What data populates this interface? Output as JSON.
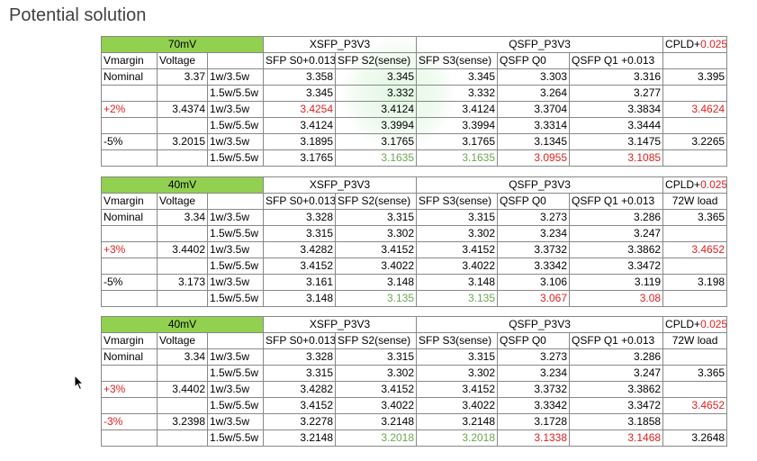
{
  "title": "Potential solution",
  "tables": [
    {
      "mv": "70mV",
      "xsfp": "XSFP_P3V3",
      "qsfp": "QSFP_P3V3",
      "cpld_prefix": "CPLD+",
      "cpld_value": "0.025",
      "sub": [
        "Vmargin",
        "Voltage",
        "",
        "SFP S0+0.013",
        "SFP S2(sense)",
        "SFP S3(sense)",
        "QSFP Q0",
        "QSFP Q1 +0.013",
        ""
      ],
      "rows": [
        [
          "Nominal",
          "3.37",
          "1w/3.5w",
          "3.358",
          "3.345",
          "3.345",
          "3.303",
          "3.316",
          "3.395"
        ],
        [
          "",
          "",
          "1.5w/5.5w",
          "3.345",
          "3.332",
          "3.332",
          "3.264",
          "3.277",
          ""
        ],
        [
          "+2%",
          "3.4374",
          "1w/3.5w",
          "3.4254",
          "3.4124",
          "3.4124",
          "3.3704",
          "3.3834",
          "3.4624"
        ],
        [
          "",
          "",
          "1.5w/5.5w",
          "3.4124",
          "3.3994",
          "3.3994",
          "3.3314",
          "3.3444",
          ""
        ],
        [
          "-5%",
          "3.2015",
          "1w/3.5w",
          "3.1895",
          "3.1765",
          "3.1765",
          "3.1345",
          "3.1475",
          "3.2265"
        ],
        [
          "",
          "",
          "1.5w/5.5w",
          "3.1765",
          "3.1635",
          "3.1635",
          "3.0955",
          "3.1085",
          ""
        ]
      ]
    },
    {
      "mv": "40mV",
      "xsfp": "XSFP_P3V3",
      "qsfp": "QSFP_P3V3",
      "cpld_prefix": "CPLD+",
      "cpld_value": "0.025",
      "sub": [
        "Vmargin",
        "Voltage",
        "",
        "SFP S0+0.013",
        "SFP S2(sense)",
        "SFP S3(sense)",
        "QSFP Q0",
        "QSFP Q1 +0.013",
        "72W load"
      ],
      "rows": [
        [
          "Nominal",
          "3.34",
          "1w/3.5w",
          "3.328",
          "3.315",
          "3.315",
          "3.273",
          "3.286",
          "3.365"
        ],
        [
          "",
          "",
          "1.5w/5.5w",
          "3.315",
          "3.302",
          "3.302",
          "3.234",
          "3.247",
          ""
        ],
        [
          "+3%",
          "3.4402",
          "1w/3.5w",
          "3.4282",
          "3.4152",
          "3.4152",
          "3.3732",
          "3.3862",
          "3.4652"
        ],
        [
          "",
          "",
          "1.5w/5.5w",
          "3.4152",
          "3.4022",
          "3.4022",
          "3.3342",
          "3.3472",
          ""
        ],
        [
          "-5%",
          "3.173",
          "1w/3.5w",
          "3.161",
          "3.148",
          "3.148",
          "3.106",
          "3.119",
          "3.198"
        ],
        [
          "",
          "",
          "1.5w/5.5w",
          "3.148",
          "3.135",
          "3.135",
          "3.067",
          "3.08",
          ""
        ]
      ]
    },
    {
      "mv": "40mV",
      "xsfp": "XSFP_P3V3",
      "qsfp": "QSFP_P3V3",
      "cpld_prefix": "CPLD+",
      "cpld_value": "0.025",
      "sub": [
        "Vmargin",
        "Voltage",
        "",
        "SFP S0+0.013",
        "SFP S2(sense)",
        "SFP S3(sense)",
        "QSFP Q0",
        "QSFP Q1 +0.013",
        "72W load"
      ],
      "rows": [
        [
          "Nominal",
          "3.34",
          "1w/3.5w",
          "3.328",
          "3.315",
          "3.315",
          "3.273",
          "3.286",
          ""
        ],
        [
          "",
          "",
          "1.5w/5.5w",
          "3.315",
          "3.302",
          "3.302",
          "3.234",
          "3.247",
          "3.365"
        ],
        [
          "+3%",
          "3.4402",
          "1w/3.5w",
          "3.4282",
          "3.4152",
          "3.4152",
          "3.3732",
          "3.3862",
          ""
        ],
        [
          "",
          "",
          "1.5w/5.5w",
          "3.4152",
          "3.4022",
          "3.4022",
          "3.3342",
          "3.3472",
          "3.4652"
        ],
        [
          "-3%",
          "3.2398",
          "1w/3.5w",
          "3.2278",
          "3.2148",
          "3.2148",
          "3.1728",
          "3.1858",
          ""
        ],
        [
          "",
          "",
          "1.5w/5.5w",
          "3.2148",
          "3.2018",
          "3.2018",
          "3.1338",
          "3.1468",
          "3.2648"
        ]
      ]
    }
  ],
  "highlights": {
    "red_color": "#e02020",
    "green_color": "#6aa84f",
    "header_fill": "#92d050",
    "red_cells": [
      [
        [
          2,
          0
        ],
        [
          2,
          3
        ],
        [
          2,
          8
        ],
        [
          5,
          6
        ],
        [
          5,
          7
        ]
      ],
      [
        [
          2,
          0
        ],
        [
          2,
          8
        ],
        [
          5,
          6
        ],
        [
          5,
          7
        ]
      ],
      [
        [
          2,
          0
        ],
        [
          4,
          0
        ],
        [
          3,
          8
        ],
        [
          5,
          6
        ],
        [
          5,
          7
        ]
      ]
    ],
    "green_cells": [
      [
        [
          5,
          4
        ],
        [
          5,
          5
        ]
      ],
      [
        [
          5,
          4
        ],
        [
          5,
          5
        ]
      ],
      [
        [
          5,
          4
        ],
        [
          5,
          5
        ]
      ]
    ]
  }
}
